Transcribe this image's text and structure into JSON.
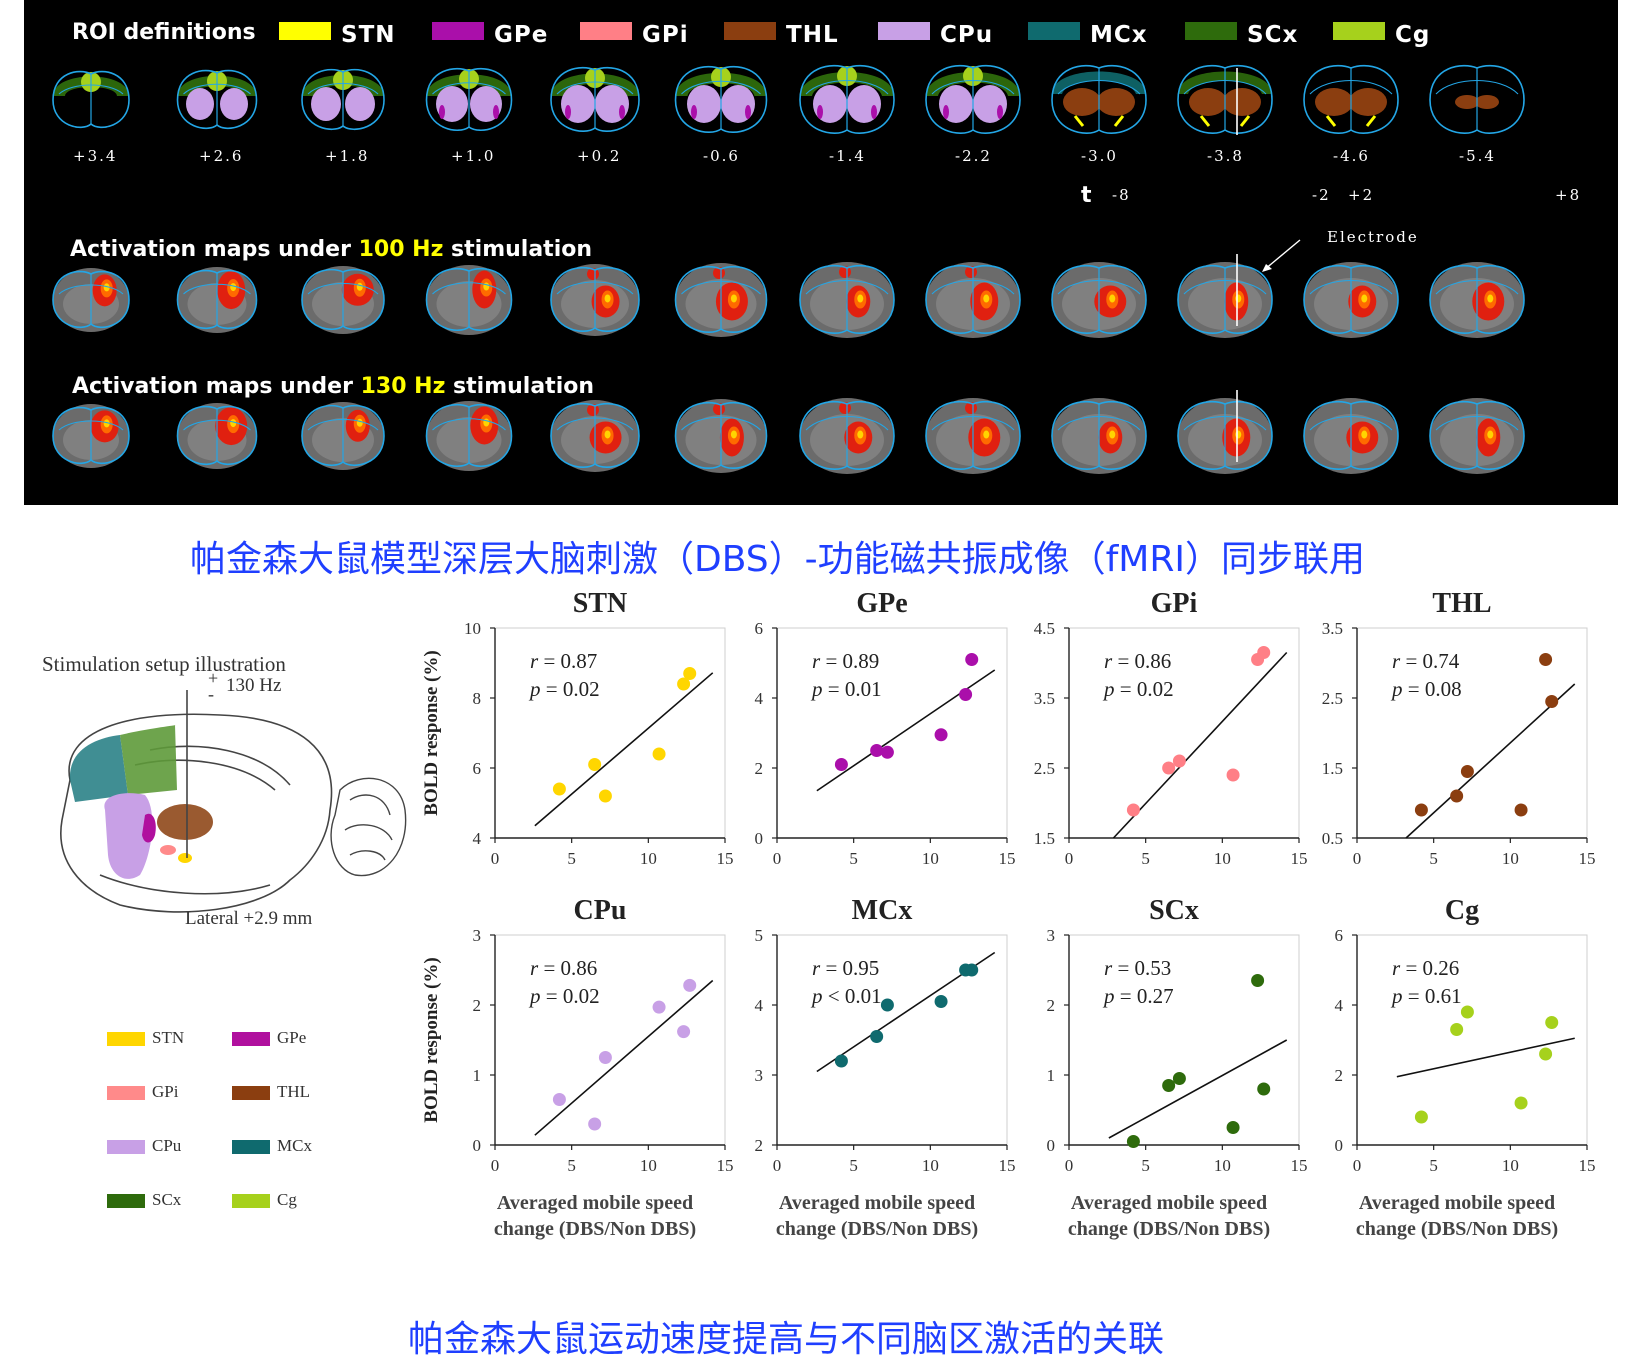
{
  "roi": {
    "title": "ROI definitions",
    "items": [
      {
        "label": "STN",
        "color": "#ffff00"
      },
      {
        "label": "GPe",
        "color": "#aa0faa"
      },
      {
        "label": "GPi",
        "color": "#ff7f86"
      },
      {
        "label": "THL",
        "color": "#8b3e10"
      },
      {
        "label": "CPu",
        "color": "#c8a0e6"
      },
      {
        "label": "MCx",
        "color": "#0f6a6e"
      },
      {
        "label": "SCx",
        "color": "#2e6b0c"
      },
      {
        "label": "Cg",
        "color": "#a6d11c"
      }
    ],
    "coords": [
      "+3.4",
      "+2.6",
      "+1.8",
      "+1.0",
      "+0.2",
      "-0.6",
      "-1.4",
      "-2.2",
      "-3.0",
      "-3.8",
      "-4.6",
      "-5.4"
    ],
    "tscale": {
      "t": "t",
      "neg_outer": "-8",
      "neg_inner": "-2",
      "pos_inner": "+2",
      "pos_outer": "+8"
    }
  },
  "activation": {
    "row1": {
      "before": "Activation maps under ",
      "hz": "100 Hz",
      "after": " stimulation"
    },
    "row2": {
      "before": "Activation maps under ",
      "hz": "130 Hz",
      "after": " stimulation"
    },
    "electrode_label": "Electrode"
  },
  "caption_top": "帕金森大鼠模型深层大脑刺激（DBS）-功能磁共振成像（fMRI）同步联用",
  "caption_bottom": "帕金森大鼠运动速度提高与不同脑区激活的关联",
  "setup": {
    "title": "Stimulation setup illustration",
    "freq": "130 Hz",
    "plus": "+",
    "minus": "-",
    "lateral": "Lateral +2.9 mm",
    "legend": [
      {
        "label": "STN",
        "color": "#ffd600"
      },
      {
        "label": "GPe",
        "color": "#b0109e"
      },
      {
        "label": "GPi",
        "color": "#ff8a8a"
      },
      {
        "label": "THL",
        "color": "#8b3e10"
      },
      {
        "label": "CPu",
        "color": "#c8a0e6"
      },
      {
        "label": "MCx",
        "color": "#0f6a6e"
      },
      {
        "label": "SCx",
        "color": "#2e6b0c"
      },
      {
        "label": "Cg",
        "color": "#a6d11c"
      }
    ]
  },
  "chart_data": [
    {
      "type": "scatter",
      "title": "STN",
      "color": "#ffd600",
      "xlim": [
        0,
        15
      ],
      "ylim": [
        4,
        10
      ],
      "yticks": [
        "4",
        "6",
        "8",
        "10"
      ],
      "r": "0.87",
      "p": "0.02",
      "p_op": "=",
      "points": [
        [
          4.2,
          5.4
        ],
        [
          6.5,
          6.1
        ],
        [
          7.2,
          5.2
        ],
        [
          10.7,
          6.4
        ],
        [
          12.3,
          8.4
        ],
        [
          12.7,
          8.7
        ]
      ],
      "fit": [
        [
          2.6,
          4.35
        ],
        [
          14.2,
          8.72
        ]
      ]
    },
    {
      "type": "scatter",
      "title": "GPe",
      "color": "#aa0faa",
      "xlim": [
        0,
        15
      ],
      "ylim": [
        0,
        6
      ],
      "yticks": [
        "0",
        "2",
        "4",
        "6"
      ],
      "r": "0.89",
      "p": "0.01",
      "p_op": "=",
      "points": [
        [
          4.2,
          2.1
        ],
        [
          6.5,
          2.5
        ],
        [
          7.2,
          2.45
        ],
        [
          10.7,
          2.95
        ],
        [
          12.3,
          4.1
        ],
        [
          12.7,
          5.1
        ]
      ],
      "fit": [
        [
          2.6,
          1.35
        ],
        [
          14.2,
          4.8
        ]
      ]
    },
    {
      "type": "scatter",
      "title": "GPi",
      "color": "#ff7f86",
      "xlim": [
        0,
        15
      ],
      "ylim": [
        1.5,
        4.5
      ],
      "yticks": [
        "1.5",
        "2.5",
        "3.5",
        "4.5"
      ],
      "r": "0.86",
      "p": "0.02",
      "p_op": "=",
      "points": [
        [
          4.2,
          1.9
        ],
        [
          6.5,
          2.5
        ],
        [
          7.2,
          2.6
        ],
        [
          10.7,
          2.4
        ],
        [
          12.3,
          4.05
        ],
        [
          12.7,
          4.15
        ]
      ],
      "fit": [
        [
          2.9,
          1.5
        ],
        [
          14.2,
          4.15
        ]
      ]
    },
    {
      "type": "scatter",
      "title": "THL",
      "color": "#8b3e10",
      "xlim": [
        0,
        15
      ],
      "ylim": [
        0.5,
        3.5
      ],
      "yticks": [
        "0.5",
        "1.5",
        "2.5",
        "3.5"
      ],
      "r": "0.74",
      "p": "0.08",
      "p_op": "=",
      "points": [
        [
          4.2,
          0.9
        ],
        [
          6.5,
          1.1
        ],
        [
          7.2,
          1.45
        ],
        [
          10.7,
          0.9
        ],
        [
          12.3,
          3.05
        ],
        [
          12.7,
          2.45
        ]
      ],
      "fit": [
        [
          3.2,
          0.5
        ],
        [
          14.2,
          2.7
        ]
      ]
    },
    {
      "type": "scatter",
      "title": "CPu",
      "color": "#c8a0e6",
      "xlim": [
        0,
        15
      ],
      "ylim": [
        0,
        3
      ],
      "yticks": [
        "0",
        "1",
        "2",
        "3"
      ],
      "r": "0.86",
      "p": "0.02",
      "p_op": "=",
      "points": [
        [
          4.2,
          0.65
        ],
        [
          6.5,
          0.3
        ],
        [
          7.2,
          1.25
        ],
        [
          10.7,
          1.97
        ],
        [
          12.3,
          1.62
        ],
        [
          12.7,
          2.28
        ]
      ],
      "fit": [
        [
          2.6,
          0.14
        ],
        [
          14.2,
          2.35
        ]
      ]
    },
    {
      "type": "scatter",
      "title": "MCx",
      "color": "#0f6a6e",
      "xlim": [
        0,
        15
      ],
      "ylim": [
        2,
        5
      ],
      "yticks": [
        "2",
        "3",
        "4",
        "5"
      ],
      "r": "0.95",
      "p": "0.01",
      "p_op": "<",
      "points": [
        [
          4.2,
          3.2
        ],
        [
          6.5,
          3.55
        ],
        [
          7.2,
          4.0
        ],
        [
          10.7,
          4.05
        ],
        [
          12.3,
          4.5
        ],
        [
          12.7,
          4.5
        ]
      ],
      "fit": [
        [
          2.6,
          3.05
        ],
        [
          14.2,
          4.75
        ]
      ]
    },
    {
      "type": "scatter",
      "title": "SCx",
      "color": "#2e6b0c",
      "xlim": [
        0,
        15
      ],
      "ylim": [
        0,
        3
      ],
      "yticks": [
        "0",
        "1",
        "2",
        "3"
      ],
      "r": "0.53",
      "p": "0.27",
      "p_op": "=",
      "points": [
        [
          4.2,
          0.05
        ],
        [
          6.5,
          0.85
        ],
        [
          7.2,
          0.95
        ],
        [
          10.7,
          0.25
        ],
        [
          12.3,
          2.35
        ],
        [
          12.7,
          0.8
        ]
      ],
      "fit": [
        [
          2.6,
          0.1
        ],
        [
          14.2,
          1.5
        ]
      ]
    },
    {
      "type": "scatter",
      "title": "Cg",
      "color": "#a6d11c",
      "xlim": [
        0,
        15
      ],
      "ylim": [
        0,
        6
      ],
      "yticks": [
        "0",
        "2",
        "4",
        "6"
      ],
      "r": "0.26",
      "p": "0.61",
      "p_op": "=",
      "points": [
        [
          4.2,
          0.8
        ],
        [
          6.5,
          3.3
        ],
        [
          7.2,
          3.8
        ],
        [
          10.7,
          1.2
        ],
        [
          12.3,
          2.6
        ],
        [
          12.7,
          3.5
        ]
      ],
      "fit": [
        [
          2.6,
          1.95
        ],
        [
          14.2,
          3.05
        ]
      ]
    }
  ],
  "axis": {
    "xticks": [
      "0",
      "5",
      "10",
      "15"
    ],
    "ylabel": "BOLD response (%)",
    "xlabel1": "Averaged mobile speed",
    "xlabel2": "change (DBS/Non DBS)",
    "r_label": "r",
    "p_label": "p"
  }
}
